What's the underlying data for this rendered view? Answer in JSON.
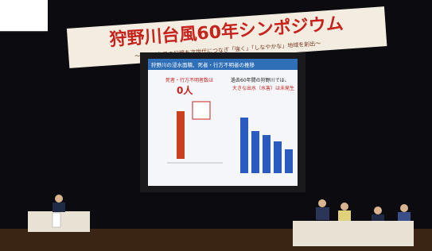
{
  "banner": {
    "title": "狩野川台風60年シンポジウム",
    "subtitle": "～狩野川台風の記憶を次世代につなぎ「強く」「しなやかな」地域を創出～"
  },
  "slide": {
    "title": "狩野川の浸水面積、死者・行方不明者の推移",
    "left_heading": "死者・行方不明者数は",
    "left_value": "0人",
    "right_heading": "過去60年間の狩野川では、",
    "right_note": "大きな出水（水害）は未発生"
  }
}
